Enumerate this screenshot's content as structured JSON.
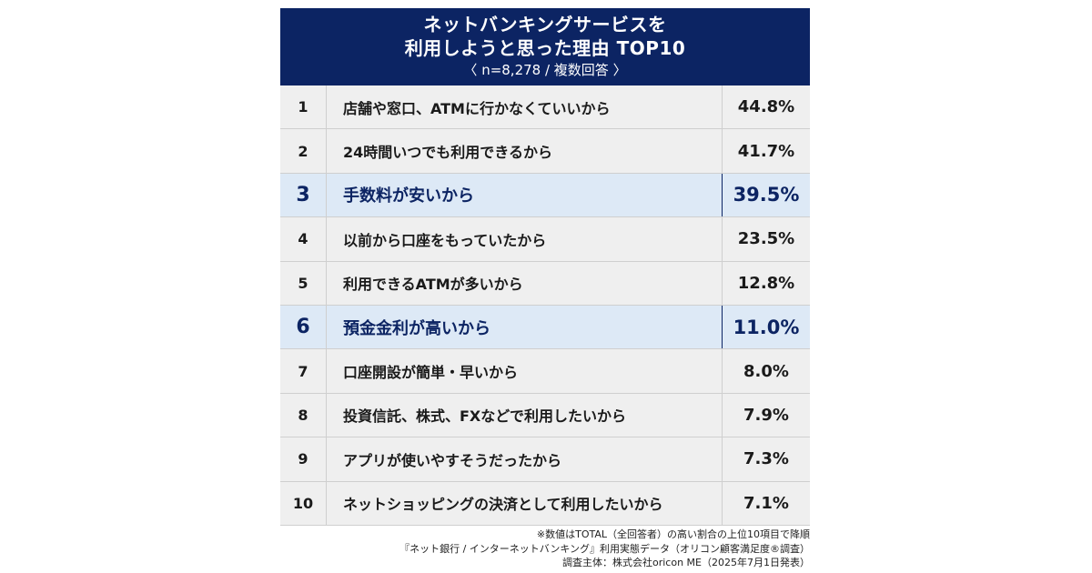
{
  "header": {
    "title_line1": "ネットバンキングサービスを",
    "title_line2": "利用しようと思った理由 TOP10",
    "subtitle": "〈 n=8,278 / 複数回答 〉",
    "background": "#0c2463"
  },
  "chart_data": {
    "type": "table",
    "title": "ネットバンキングサービスを利用しようと思った理由 TOP10",
    "subtitle": "〈 n=8,278 / 複数回答 〉",
    "rows": [
      {
        "rank": "1",
        "reason": "店舗や窓口、ATMに行かなくていいから",
        "percent": "44.8%",
        "value": 44.8,
        "highlight": false
      },
      {
        "rank": "2",
        "reason": "24時間いつでも利用できるから",
        "percent": "41.7%",
        "value": 41.7,
        "highlight": false
      },
      {
        "rank": "3",
        "reason": "手数料が安いから",
        "percent": "39.5%",
        "value": 39.5,
        "highlight": true
      },
      {
        "rank": "4",
        "reason": "以前から口座をもっていたから",
        "percent": "23.5%",
        "value": 23.5,
        "highlight": false
      },
      {
        "rank": "5",
        "reason": "利用できるATMが多いから",
        "percent": "12.8%",
        "value": 12.8,
        "highlight": false
      },
      {
        "rank": "6",
        "reason": "預金金利が高いから",
        "percent": "11.0%",
        "value": 11.0,
        "highlight": true
      },
      {
        "rank": "7",
        "reason": "口座開設が簡単・早いから",
        "percent": "8.0%",
        "value": 8.0,
        "highlight": false
      },
      {
        "rank": "8",
        "reason": "投資信託、株式、FXなどで利用したいから",
        "percent": "7.9%",
        "value": 7.9,
        "highlight": false
      },
      {
        "rank": "9",
        "reason": "アプリが使いやすそうだったから",
        "percent": "7.3%",
        "value": 7.3,
        "highlight": false
      },
      {
        "rank": "10",
        "reason": "ネットショッピングの決済として利用したいから",
        "percent": "7.1%",
        "value": 7.1,
        "highlight": false
      }
    ]
  },
  "footnotes": {
    "line1": "※数値はTOTAL（全回答者）の高い割合の上位10項目で降順",
    "line2": "『ネット銀行 / インターネットバンキング』利用実態データ（オリコン顧客満足度®調査）",
    "line3": "調査主体：株式会社oricon ME（2025年7月1日発表）"
  },
  "colors": {
    "navy": "#0c2463",
    "row_bg": "#efefef",
    "highlight_bg": "#dde9f6"
  }
}
